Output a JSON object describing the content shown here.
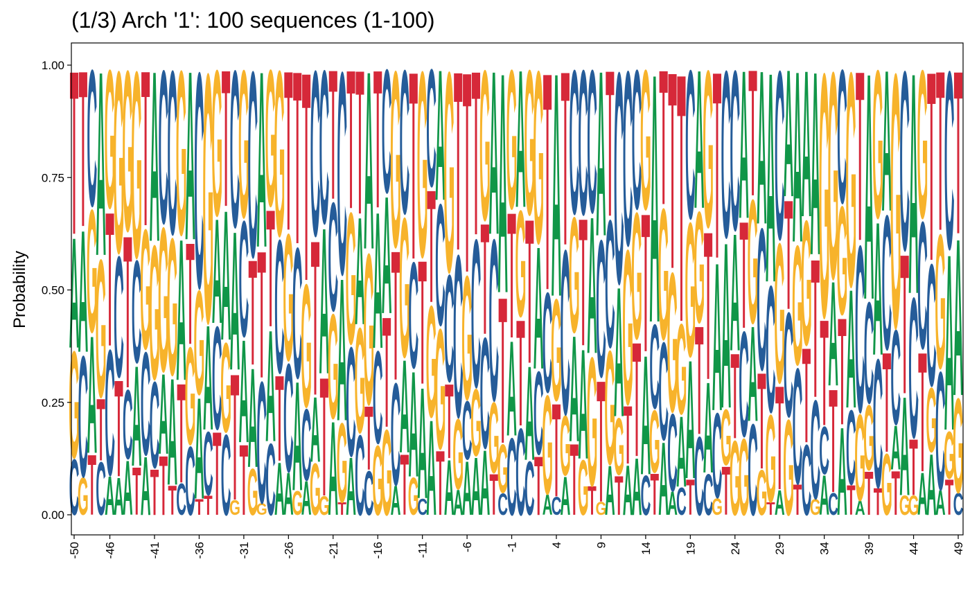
{
  "chart_data": {
    "type": "sequence-logo",
    "title": "(1/3) Arch '1': 100 sequences (1-100)",
    "ylabel": "Probability",
    "xlabel": "",
    "ylim": [
      0,
      1
    ],
    "yticks": [
      "0.00",
      "0.25",
      "0.50",
      "0.75",
      "1.00"
    ],
    "positions": [
      -50,
      49
    ],
    "xtick_labels": [
      "-50",
      "-46",
      "-41",
      "-36",
      "-31",
      "-26",
      "-21",
      "-16",
      "-11",
      "-6",
      "-1",
      "4",
      "9",
      "14",
      "19",
      "24",
      "29",
      "34",
      "39",
      "44",
      "49"
    ],
    "grid": false,
    "legend": "none",
    "colors": {
      "A": "#109648",
      "C": "#255c99",
      "G": "#f7b32b",
      "T": "#d62839"
    },
    "note_letters": [
      "A",
      "C",
      "G",
      "T"
    ]
  }
}
